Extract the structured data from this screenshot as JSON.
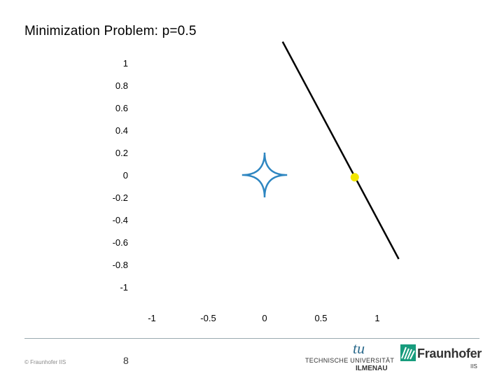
{
  "slide": {
    "title": "Minimization Problem: p=0.5",
    "page_number": "8",
    "copyright": "© Fraunhofer IIS"
  },
  "logos": {
    "tu_mark": "tu",
    "tu_name": "TECHNISCHE UNIVERSITÄT",
    "tu_city": "ILMENAU",
    "fraunhofer_name": "Fraunhofer",
    "fraunhofer_unit": "IIS",
    "tu_color": "#2b6a8c",
    "fraunhofer_color": "#179c7d"
  },
  "chart_data": {
    "type": "line",
    "title": "Minimization Problem: p=0.5",
    "xlabel": "",
    "ylabel": "",
    "xlim": [
      -1,
      1
    ],
    "ylim": [
      -1,
      1
    ],
    "x_ticks": [
      -1,
      -0.5,
      0,
      0.5,
      1
    ],
    "x_tick_labels": [
      "-1",
      "-0.5",
      "0",
      "0.5",
      "1"
    ],
    "y_ticks": [
      1,
      0.8,
      0.6,
      0.4,
      0.2,
      0,
      -0.2,
      -0.4,
      -0.6,
      -0.8,
      -1
    ],
    "y_tick_labels": [
      "1",
      "0.8",
      "0.6",
      "0.4",
      "0.2",
      "0",
      "-0.2",
      "-0.4",
      "-0.6",
      "-0.8",
      "-1"
    ],
    "grid": false,
    "series": [
      {
        "kind": "unit-ball",
        "p": 0.5,
        "radius": 0.2,
        "color": "#2e86c1"
      },
      {
        "kind": "constraint-line",
        "points": [
          [
            0.16,
            1.19
          ],
          [
            1.19,
            -0.75
          ]
        ],
        "color": "#000000"
      },
      {
        "kind": "solution-point",
        "x": 0.8,
        "y": -0.02,
        "color": "#f2e600"
      }
    ]
  }
}
